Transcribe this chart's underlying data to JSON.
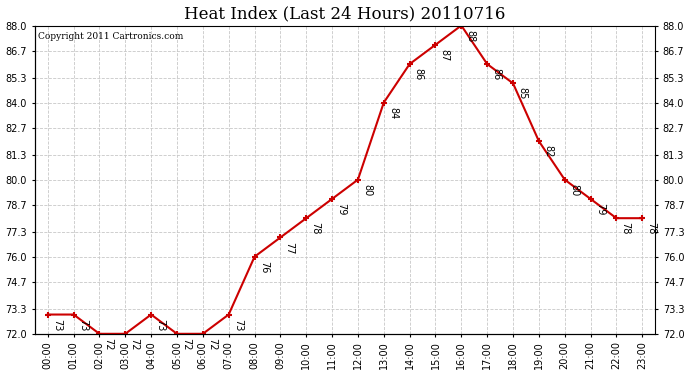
{
  "title": "Heat Index (Last 24 Hours) 20110716",
  "copyright": "Copyright 2011 Cartronics.com",
  "hours": [
    "00:00",
    "01:00",
    "02:00",
    "03:00",
    "04:00",
    "05:00",
    "06:00",
    "07:00",
    "08:00",
    "09:00",
    "10:00",
    "11:00",
    "12:00",
    "13:00",
    "14:00",
    "15:00",
    "16:00",
    "17:00",
    "18:00",
    "19:00",
    "20:00",
    "21:00",
    "22:00",
    "23:00"
  ],
  "values": [
    73,
    73,
    72,
    72,
    73,
    72,
    72,
    73,
    76,
    77,
    78,
    79,
    80,
    84,
    86,
    87,
    88,
    86,
    85,
    82,
    80,
    79,
    78,
    78
  ],
  "ylim": [
    72.0,
    88.0
  ],
  "yticks": [
    72.0,
    73.3,
    74.7,
    76.0,
    77.3,
    78.7,
    80.0,
    81.3,
    82.7,
    84.0,
    85.3,
    86.7,
    88.0
  ],
  "line_color": "#cc0000",
  "marker": "+",
  "marker_color": "#cc0000",
  "bg_color": "#ffffff",
  "grid_color": "#c8c8c8",
  "title_fontsize": 12,
  "label_fontsize": 7,
  "annotation_fontsize": 7,
  "tick_label_fontsize": 7
}
